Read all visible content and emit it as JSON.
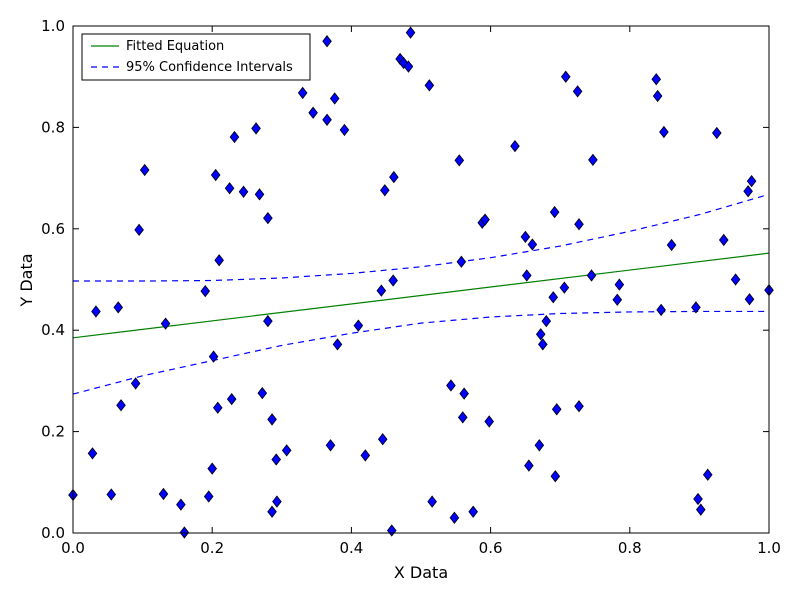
{
  "chart_data": {
    "type": "scatter",
    "title": "",
    "xlabel": "X Data",
    "ylabel": "Y Data",
    "xlim": [
      0.0,
      1.0
    ],
    "ylim": [
      0.0,
      1.0
    ],
    "xticks": [
      "0.0",
      "0.2",
      "0.4",
      "0.6",
      "0.8",
      "1.0"
    ],
    "yticks": [
      "0.0",
      "0.2",
      "0.4",
      "0.6",
      "0.8",
      "1.0"
    ],
    "grid": false,
    "legend_position": "top-left",
    "colors": {
      "scatter": "#0000ff",
      "fit": "#008000",
      "ci": "#0000ff"
    },
    "legend": [
      {
        "label": "Fitted Equation",
        "style": "solid",
        "color": "#008000"
      },
      {
        "label": "95% Confidence Intervals",
        "style": "dashed",
        "color": "#0000ff"
      }
    ],
    "fit_line": {
      "x": [
        0.0,
        1.0
      ],
      "y": [
        0.385,
        0.552
      ]
    },
    "ci_upper": {
      "x": [
        0.0,
        0.1,
        0.2,
        0.3,
        0.4,
        0.5,
        0.6,
        0.7,
        0.8,
        0.9,
        1.0
      ],
      "y": [
        0.497,
        0.497,
        0.498,
        0.503,
        0.512,
        0.525,
        0.543,
        0.566,
        0.595,
        0.628,
        0.668
      ]
    },
    "ci_lower": {
      "x": [
        0.0,
        0.1,
        0.2,
        0.3,
        0.4,
        0.5,
        0.6,
        0.7,
        0.8,
        0.9,
        1.0
      ],
      "y": [
        0.274,
        0.31,
        0.34,
        0.37,
        0.394,
        0.414,
        0.426,
        0.433,
        0.436,
        0.437,
        0.437
      ]
    },
    "series": [
      {
        "marker": "diamond",
        "points": [
          [
            0.0,
            0.075
          ],
          [
            0.028,
            0.157
          ],
          [
            0.033,
            0.437
          ],
          [
            0.055,
            0.076
          ],
          [
            0.065,
            0.445
          ],
          [
            0.069,
            0.252
          ],
          [
            0.09,
            0.295
          ],
          [
            0.095,
            0.598
          ],
          [
            0.103,
            0.716
          ],
          [
            0.13,
            0.077
          ],
          [
            0.133,
            0.413
          ],
          [
            0.155,
            0.056
          ],
          [
            0.16,
            0.001
          ],
          [
            0.19,
            0.477
          ],
          [
            0.195,
            0.072
          ],
          [
            0.2,
            0.127
          ],
          [
            0.202,
            0.348
          ],
          [
            0.205,
            0.706
          ],
          [
            0.208,
            0.247
          ],
          [
            0.21,
            0.538
          ],
          [
            0.225,
            0.68
          ],
          [
            0.228,
            0.264
          ],
          [
            0.232,
            0.781
          ],
          [
            0.245,
            0.673
          ],
          [
            0.263,
            0.798
          ],
          [
            0.268,
            0.668
          ],
          [
            0.272,
            0.276
          ],
          [
            0.28,
            0.621
          ],
          [
            0.28,
            0.418
          ],
          [
            0.286,
            0.224
          ],
          [
            0.286,
            0.042
          ],
          [
            0.292,
            0.145
          ],
          [
            0.293,
            0.062
          ],
          [
            0.307,
            0.163
          ],
          [
            0.33,
            0.868
          ],
          [
            0.345,
            0.829
          ],
          [
            0.365,
            0.815
          ],
          [
            0.365,
            0.97
          ],
          [
            0.37,
            0.173
          ],
          [
            0.376,
            0.857
          ],
          [
            0.38,
            0.372
          ],
          [
            0.39,
            0.795
          ],
          [
            0.41,
            0.409
          ],
          [
            0.42,
            0.153
          ],
          [
            0.443,
            0.478
          ],
          [
            0.445,
            0.185
          ],
          [
            0.448,
            0.676
          ],
          [
            0.458,
            0.005
          ],
          [
            0.46,
            0.498
          ],
          [
            0.461,
            0.702
          ],
          [
            0.47,
            0.935
          ],
          [
            0.475,
            0.927
          ],
          [
            0.482,
            0.92
          ],
          [
            0.485,
            0.987
          ],
          [
            0.512,
            0.883
          ],
          [
            0.516,
            0.062
          ],
          [
            0.543,
            0.291
          ],
          [
            0.548,
            0.03
          ],
          [
            0.555,
            0.735
          ],
          [
            0.558,
            0.535
          ],
          [
            0.56,
            0.228
          ],
          [
            0.562,
            0.275
          ],
          [
            0.575,
            0.042
          ],
          [
            0.588,
            0.612
          ],
          [
            0.592,
            0.618
          ],
          [
            0.598,
            0.22
          ],
          [
            0.635,
            0.763
          ],
          [
            0.65,
            0.584
          ],
          [
            0.652,
            0.508
          ],
          [
            0.655,
            0.133
          ],
          [
            0.66,
            0.569
          ],
          [
            0.67,
            0.173
          ],
          [
            0.672,
            0.392
          ],
          [
            0.675,
            0.372
          ],
          [
            0.68,
            0.418
          ],
          [
            0.69,
            0.465
          ],
          [
            0.692,
            0.633
          ],
          [
            0.693,
            0.112
          ],
          [
            0.695,
            0.244
          ],
          [
            0.706,
            0.484
          ],
          [
            0.708,
            0.9
          ],
          [
            0.725,
            0.871
          ],
          [
            0.727,
            0.609
          ],
          [
            0.727,
            0.25
          ],
          [
            0.745,
            0.508
          ],
          [
            0.747,
            0.736
          ],
          [
            0.782,
            0.46
          ],
          [
            0.785,
            0.49
          ],
          [
            0.838,
            0.895
          ],
          [
            0.84,
            0.862
          ],
          [
            0.845,
            0.44
          ],
          [
            0.849,
            0.791
          ],
          [
            0.86,
            0.568
          ],
          [
            0.895,
            0.445
          ],
          [
            0.898,
            0.067
          ],
          [
            0.902,
            0.046
          ],
          [
            0.912,
            0.115
          ],
          [
            0.925,
            0.789
          ],
          [
            0.935,
            0.578
          ],
          [
            0.952,
            0.5
          ],
          [
            0.97,
            0.674
          ],
          [
            0.972,
            0.461
          ],
          [
            0.975,
            0.694
          ],
          [
            1.0,
            0.479
          ]
        ]
      }
    ]
  }
}
